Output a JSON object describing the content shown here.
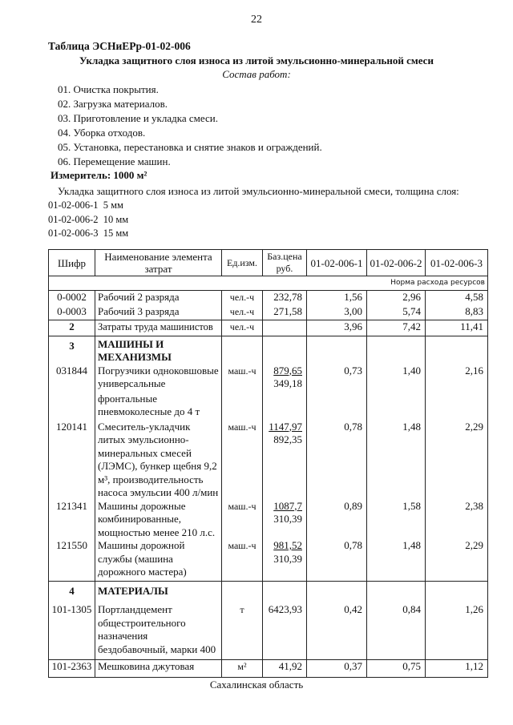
{
  "page_number": "22",
  "table_title": "Таблица ЭСНиЕРр-01-02-006",
  "subtitle": "Укладка защитного слоя износа из литой эмульсионно-минеральной смеси",
  "composition_heading": "Состав работ:",
  "works": [
    "01. Очистка покрытия.",
    "02. Загрузка материалов.",
    "03. Приготовление и укладка смеси.",
    "04. Уборка отходов.",
    "05. Установка, перестановка и снятие знаков и ограждений.",
    "06. Перемещение машин."
  ],
  "meter": "Измеритель: 1000 м²",
  "description": "Укладка защитного слоя износа из литой эмульсионно-минеральной смеси, толщина слоя:",
  "variants": [
    {
      "code": "01-02-006-1",
      "value": "5 мм"
    },
    {
      "code": "01-02-006-2",
      "value": "10 мм"
    },
    {
      "code": "01-02-006-3",
      "value": "15 мм"
    }
  ],
  "table": {
    "headers": [
      "Шифр",
      "Наименование элемента затрат",
      "Ед.изм.",
      "Баз.цена руб.",
      "01-02-006-1",
      "01-02-006-2",
      "01-02-006-3"
    ],
    "norma_label": "Норма расхода ресурсов",
    "rows": [
      {
        "code": "0-0002",
        "name": "Рабочий 2 разряда",
        "unit": "чел.-ч",
        "price": "232,78",
        "v1": "1,56",
        "v2": "2,96",
        "v3": "4,58"
      },
      {
        "code": "0-0003",
        "name": "Рабочий 3 разряда",
        "unit": "чел.-ч",
        "price": "271,58",
        "v1": "3,00",
        "v2": "5,74",
        "v3": "8,83"
      },
      {
        "code": "2",
        "name": "Затраты труда машинистов",
        "unit": "чел.-ч",
        "price": "",
        "v1": "3,96",
        "v2": "7,42",
        "v3": "11,41"
      },
      {
        "code": "3",
        "name": "МАШИНЫ И МЕХАНИЗМЫ"
      },
      {
        "code": "031844",
        "name": "Погрузчики одноковшовые универсальные",
        "name_cont": "фронтальные пневмоколесные до 4 т",
        "unit": "маш.-ч",
        "price": "879,65",
        "price2": "349,18",
        "v1": "0,73",
        "v2": "1,40",
        "v3": "2,16"
      },
      {
        "code": "120141",
        "name": "Смеситель-укладчик литых эмульсионно-минеральных смесей (ЛЭМС), бункер щебня 9,2 м³, производительность насоса эмульсии 400 л/мин",
        "unit": "маш.-ч",
        "price": "1147,97",
        "price2": "892,35",
        "v1": "0,78",
        "v2": "1,48",
        "v3": "2,29"
      },
      {
        "code": "121341",
        "name": "Машины дорожные комбинированные, мощностью менее 210 л.с.",
        "unit": "маш.-ч",
        "price": "1087,7",
        "price2": "310,39",
        "v1": "0,89",
        "v2": "1,58",
        "v3": "2,38"
      },
      {
        "code": "121550",
        "name": "Машины дорожной службы (машина дорожного мастера)",
        "unit": "маш.-ч",
        "price": "981,52",
        "price2": "310,39",
        "v1": "0,78",
        "v2": "1,48",
        "v3": "2,29"
      },
      {
        "code": "4",
        "name": "МАТЕРИАЛЫ"
      },
      {
        "code": "101-1305",
        "name": "Портландцемент общестроительного назначения бездобавочный, марки 400",
        "unit": "т",
        "price": "6423,93",
        "v1": "0,42",
        "v2": "0,84",
        "v3": "1,26"
      },
      {
        "code": "101-2363",
        "name": "Мешковина джутовая",
        "unit": "м²",
        "price": "41,92",
        "v1": "0,37",
        "v2": "0,75",
        "v3": "1,12"
      }
    ]
  },
  "footer": "Сахалинская область"
}
